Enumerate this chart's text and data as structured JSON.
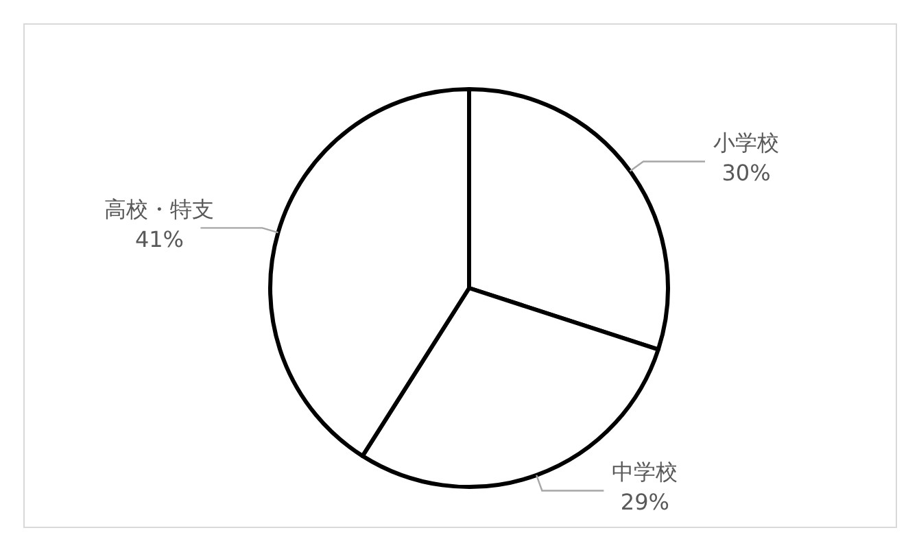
{
  "chart_data": {
    "type": "pie",
    "categories": [
      "小学校",
      "中学校",
      "高校・特支"
    ],
    "values": [
      30,
      29,
      41
    ],
    "colors": [
      "#ffffff",
      "#ffffff",
      "#ffffff"
    ],
    "value_labels": [
      "30%",
      "29%",
      "41%"
    ]
  }
}
